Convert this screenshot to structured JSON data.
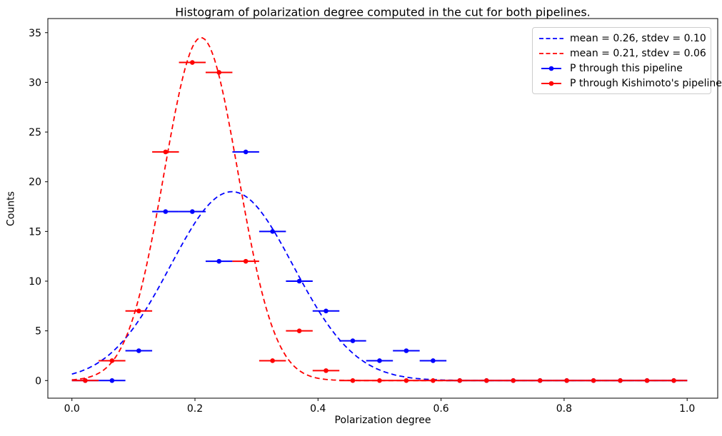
{
  "chart_data": {
    "type": "scatter",
    "subtype": "histogram-points-with-xerr-and-gaussian-fits",
    "title": "Histogram of polarization degree computed in the cut for both pipelines.",
    "xlabel": "Polarization degree",
    "ylabel": "Counts",
    "xlim": [
      -0.039,
      1.05
    ],
    "ylim": [
      -1.77,
      36.4
    ],
    "grid": false,
    "legend_position": "upper right",
    "xtick_values": [
      0.0,
      0.2,
      0.4,
      0.6,
      0.8,
      1.0
    ],
    "xtick_labels": [
      "0.0",
      "0.2",
      "0.4",
      "0.6",
      "0.8",
      "1.0"
    ],
    "ytick_values": [
      0,
      5,
      10,
      15,
      20,
      25,
      30,
      35
    ],
    "ytick_labels": [
      "0",
      "5",
      "10",
      "15",
      "20",
      "25",
      "30",
      "35"
    ],
    "bin_width": 0.04348,
    "bin_centers": [
      0.0217,
      0.0652,
      0.1087,
      0.1522,
      0.1957,
      0.2391,
      0.2826,
      0.3261,
      0.3696,
      0.413,
      0.4565,
      0.5,
      0.5435,
      0.587,
      0.6304,
      0.6739,
      0.7174,
      0.7609,
      0.8043,
      0.8478,
      0.8913,
      0.9348,
      0.9783
    ],
    "series": [
      {
        "name": "P through this pipeline",
        "color": "#0000ff",
        "marker": "point-with-xerr",
        "counts": [
          0,
          0,
          3,
          17,
          17,
          12,
          23,
          15,
          10,
          7,
          4,
          2,
          3,
          2,
          0,
          0,
          0,
          0,
          0,
          0,
          0,
          0,
          0
        ]
      },
      {
        "name": "P through Kishimoto's pipeline",
        "color": "#ff0000",
        "marker": "point-with-xerr",
        "counts": [
          0,
          2,
          7,
          23,
          32,
          31,
          12,
          2,
          5,
          1,
          0,
          0,
          0,
          0,
          0,
          0,
          0,
          0,
          0,
          0,
          0,
          0,
          0
        ]
      }
    ],
    "fit_curves": [
      {
        "label": "mean = 0.26, stdev = 0.10",
        "color": "#0000ff",
        "linestyle": "dashed",
        "mean": 0.26,
        "stdev": 0.1,
        "amplitude": 19.0
      },
      {
        "label": "mean = 0.21, stdev = 0.06",
        "color": "#ff0000",
        "linestyle": "dashed",
        "mean": 0.21,
        "stdev": 0.06,
        "amplitude": 34.5
      }
    ],
    "legend_entries": [
      {
        "label": "mean = 0.26, stdev = 0.10",
        "color": "#0000ff",
        "style": "dashed-line"
      },
      {
        "label": "mean = 0.21, stdev = 0.06",
        "color": "#ff0000",
        "style": "dashed-line"
      },
      {
        "label": "P through this pipeline",
        "color": "#0000ff",
        "style": "errorbar-point"
      },
      {
        "label": "P through Kishimoto's pipeline",
        "color": "#ff0000",
        "style": "errorbar-point"
      }
    ],
    "colors": {
      "background": "#ffffff",
      "axis": "#000000",
      "legend_border": "#cccccc"
    }
  }
}
